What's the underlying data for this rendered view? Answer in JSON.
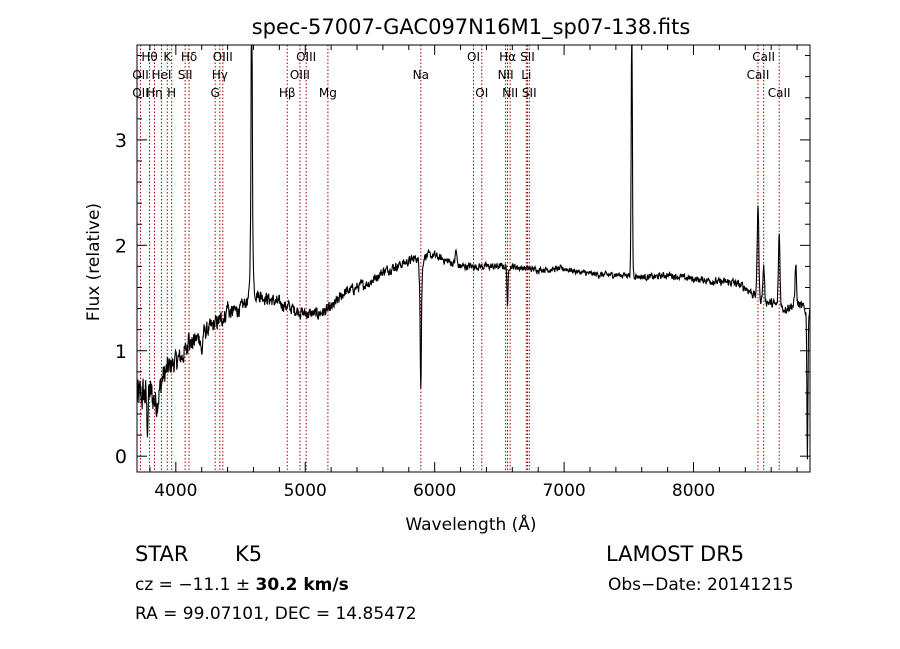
{
  "chart_data": {
    "type": "line",
    "title": "spec-57007-GAC097N16M1_sp07-138.fits",
    "xlabel": "Wavelength (Å)",
    "ylabel": "Flux (relative)",
    "xlim": [
      3700,
      8900
    ],
    "ylim": [
      -0.15,
      3.9
    ],
    "xticks": [
      4000,
      5000,
      6000,
      7000,
      8000
    ],
    "yticks": [
      0,
      1,
      2,
      3
    ],
    "xtick_labels": [
      "4000",
      "5000",
      "6000",
      "7000",
      "8000"
    ],
    "ytick_labels": [
      "0",
      "1",
      "2",
      "3"
    ],
    "xminor_step": 200,
    "yminor_step": 0.2,
    "grid": false,
    "line_color": "#000000",
    "marker_color": "#aa0000",
    "continuum": [
      [
        3700,
        0.55
      ],
      [
        3800,
        0.6
      ],
      [
        3850,
        0.5
      ],
      [
        3900,
        0.75
      ],
      [
        3950,
        0.85
      ],
      [
        4000,
        0.9
      ],
      [
        4050,
        0.95
      ],
      [
        4100,
        1.05
      ],
      [
        4200,
        1.15
      ],
      [
        4300,
        1.25
      ],
      [
        4400,
        1.35
      ],
      [
        4500,
        1.4
      ],
      [
        4600,
        1.55
      ],
      [
        4700,
        1.5
      ],
      [
        4800,
        1.45
      ],
      [
        4900,
        1.4
      ],
      [
        5000,
        1.35
      ],
      [
        5100,
        1.35
      ],
      [
        5200,
        1.4
      ],
      [
        5300,
        1.55
      ],
      [
        5400,
        1.6
      ],
      [
        5500,
        1.65
      ],
      [
        5600,
        1.75
      ],
      [
        5700,
        1.8
      ],
      [
        5800,
        1.85
      ],
      [
        5900,
        1.9
      ],
      [
        6000,
        1.9
      ],
      [
        6100,
        1.85
      ],
      [
        6200,
        1.8
      ],
      [
        6300,
        1.8
      ],
      [
        6400,
        1.8
      ],
      [
        6500,
        1.8
      ],
      [
        6600,
        1.8
      ],
      [
        6700,
        1.78
      ],
      [
        6800,
        1.77
      ],
      [
        6900,
        1.77
      ],
      [
        7000,
        1.78
      ],
      [
        7100,
        1.75
      ],
      [
        7200,
        1.73
      ],
      [
        7300,
        1.72
      ],
      [
        7400,
        1.72
      ],
      [
        7500,
        1.72
      ],
      [
        7600,
        1.7
      ],
      [
        7700,
        1.7
      ],
      [
        7800,
        1.72
      ],
      [
        7900,
        1.7
      ],
      [
        8000,
        1.68
      ],
      [
        8100,
        1.67
      ],
      [
        8200,
        1.65
      ],
      [
        8300,
        1.65
      ],
      [
        8400,
        1.6
      ],
      [
        8500,
        1.5
      ],
      [
        8600,
        1.45
      ],
      [
        8700,
        1.4
      ],
      [
        8800,
        1.45
      ],
      [
        8900,
        1.35
      ]
    ],
    "features": [
      [
        4586,
        3.5,
        4
      ],
      [
        4586,
        2.6,
        8
      ],
      [
        5893,
        1.0,
        4
      ],
      [
        5893,
        1.55,
        10
      ],
      [
        7523,
        3.9,
        4
      ],
      [
        7523,
        2.1,
        6
      ],
      [
        8498,
        2.4,
        6
      ],
      [
        8542,
        1.8,
        6
      ],
      [
        8662,
        2.1,
        6
      ],
      [
        8790,
        1.85,
        5
      ],
      [
        6563,
        1.4,
        4
      ],
      [
        4101,
        1.25,
        4
      ],
      [
        6165,
        1.95,
        6
      ],
      [
        8880,
        0.0,
        4
      ],
      [
        4200,
        0.95,
        5
      ],
      [
        4400,
        1.45,
        6
      ],
      [
        3780,
        0.3,
        5
      ]
    ],
    "noise_amplitude": [
      [
        3700,
        0.3
      ],
      [
        4000,
        0.15
      ],
      [
        4500,
        0.1
      ],
      [
        5000,
        0.09
      ],
      [
        6000,
        0.06
      ],
      [
        7000,
        0.04
      ],
      [
        8000,
        0.05
      ],
      [
        8900,
        0.08
      ]
    ],
    "lines": [
      {
        "label": "Hθ",
        "x": 3797,
        "row": 1
      },
      {
        "label": "OII",
        "x": 3727,
        "row": 2
      },
      {
        "label": "OII",
        "x": 3727,
        "row": 3
      },
      {
        "label": "Hη",
        "x": 3835,
        "row": 3
      },
      {
        "label": "K",
        "x": 3934,
        "row": 1
      },
      {
        "label": "HeI",
        "x": 3889,
        "row": 2
      },
      {
        "label": "H",
        "x": 3968,
        "row": 3
      },
      {
        "label": "Hδ",
        "x": 4102,
        "row": 1
      },
      {
        "label": "SII",
        "x": 4072,
        "row": 2
      },
      {
        "label": "OIII",
        "x": 4363,
        "row": 1
      },
      {
        "label": "Hγ",
        "x": 4340,
        "row": 2
      },
      {
        "label": "G",
        "x": 4304,
        "row": 3
      },
      {
        "label": "Hβ",
        "x": 4861,
        "row": 3
      },
      {
        "label": "OIII",
        "x": 5007,
        "row": 1
      },
      {
        "label": "OIII",
        "x": 4959,
        "row": 2
      },
      {
        "label": "Mg",
        "x": 5175,
        "row": 3
      },
      {
        "label": "Na",
        "x": 5893,
        "row": 2
      },
      {
        "label": "OI",
        "x": 6300,
        "row": 1
      },
      {
        "label": "OI",
        "x": 6364,
        "row": 3
      },
      {
        "label": "Hα",
        "x": 6563,
        "row": 1
      },
      {
        "label": "NII",
        "x": 6548,
        "row": 2
      },
      {
        "label": "NII",
        "x": 6583,
        "row": 3
      },
      {
        "label": "SII",
        "x": 6717,
        "row": 1
      },
      {
        "label": "Li",
        "x": 6708,
        "row": 2
      },
      {
        "label": "SII",
        "x": 6731,
        "row": 3
      },
      {
        "label": "CaII",
        "x": 8542,
        "row": 1
      },
      {
        "label": "CaII",
        "x": 8498,
        "row": 2
      },
      {
        "label": "CaII",
        "x": 8662,
        "row": 3
      }
    ]
  },
  "info": {
    "object_class": "STAR",
    "subclass": "K5",
    "survey": "LAMOST DR5",
    "cz_prefix": "cz = −11.1 ± ",
    "cz_bold": "30.2 km/s",
    "obs_date": "Obs−Date: 20141215",
    "coords": "RA =  99.07101, DEC =  14.85472"
  }
}
